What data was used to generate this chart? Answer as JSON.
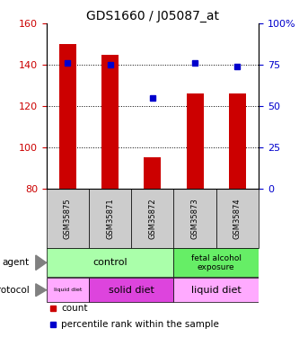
{
  "title": "GDS1660 / J05087_at",
  "samples": [
    "GSM35875",
    "GSM35871",
    "GSM35872",
    "GSM35873",
    "GSM35874"
  ],
  "bar_bottom": 80,
  "bar_tops": [
    150,
    145,
    95,
    126,
    126
  ],
  "percentile_ranks": [
    76,
    75,
    55,
    76,
    74
  ],
  "left_yticks": [
    80,
    100,
    120,
    140,
    160
  ],
  "left_ylim": [
    80,
    160
  ],
  "right_ylim": [
    0,
    100
  ],
  "right_yticks": [
    0,
    25,
    50,
    75,
    100
  ],
  "right_yticklabels": [
    "0",
    "25",
    "50",
    "75",
    "100%"
  ],
  "bar_color": "#cc0000",
  "dot_color": "#0000cc",
  "agent_control_color": "#aaffaa",
  "agent_fetal_color": "#66ee66",
  "protocol_liquid_color": "#ffaaff",
  "protocol_solid_color": "#dd44dd",
  "sample_bg_color": "#cccccc",
  "agent_control_label": "control",
  "agent_fetal_label": "fetal alcohol\nexposure",
  "protocol_liquid1_label": "liquid diet",
  "protocol_solid_label": "solid diet",
  "protocol_liquid2_label": "liquid diet",
  "agent_row_label": "agent",
  "protocol_row_label": "protocol",
  "legend_count_label": "count",
  "legend_pct_label": "percentile rank within the sample",
  "grid_dotted_at": [
    100,
    120,
    140
  ]
}
